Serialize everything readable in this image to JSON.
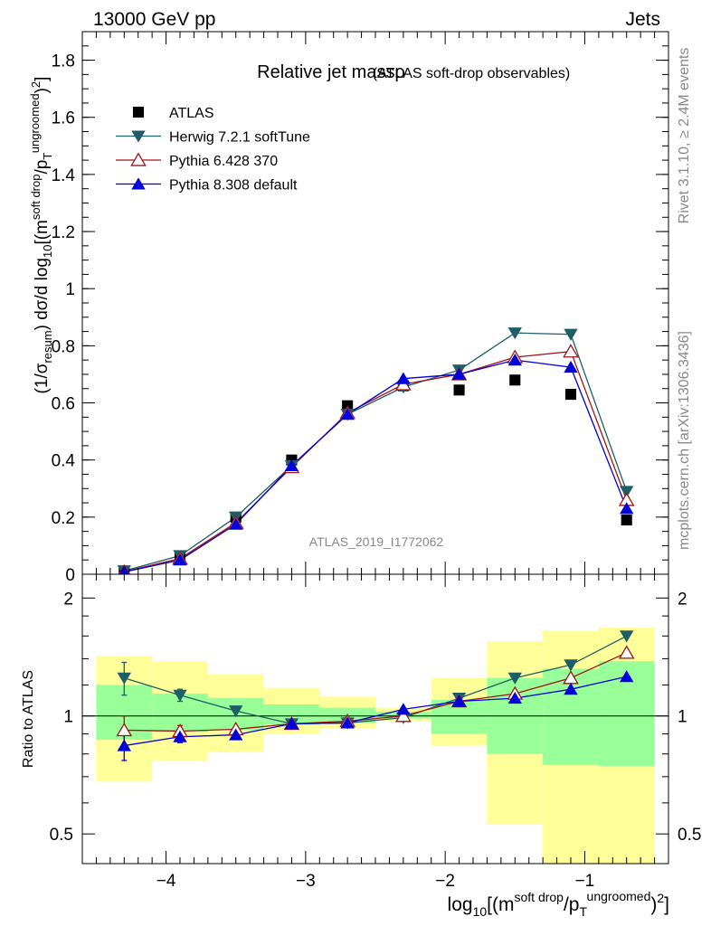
{
  "header": {
    "left": "13000 GeV pp",
    "right": "Jets"
  },
  "side": {
    "rivet": "Rivet 3.1.10, ≥ 2.4M events",
    "mcplots": "mcplots.cern.ch [arXiv:1306.3436]"
  },
  "chart_data": [
    {
      "type": "line",
      "title": "Relative jet massρ",
      "subtitle": "(ATLAS soft-drop observables)",
      "watermark": "ATLAS_2019_I1772062",
      "xlabel": "log10[(m^soft drop/pT^ungroomed)^2]",
      "ylabel": "(1/σresum) dσ/d log10[(m^soft drop/pT^ungroomed)^2]",
      "xlim": [
        -4.6,
        -0.4
      ],
      "ylim": [
        0,
        1.9
      ],
      "yticks": [
        "0",
        "0.2",
        "0.4",
        "0.6",
        "0.8",
        "1",
        "1.2",
        "1.4",
        "1.6",
        "1.8"
      ],
      "grid": false,
      "legend_position": "top-left",
      "x": [
        -4.3,
        -3.9,
        -3.5,
        -3.1,
        -2.7,
        -2.3,
        -1.9,
        -1.5,
        -1.1,
        -0.7
      ],
      "series": [
        {
          "name": "ATLAS",
          "marker": "square",
          "color": "#000000",
          "values": [
            0.01,
            0.06,
            0.2,
            0.4,
            0.59,
            0.66,
            0.645,
            0.68,
            0.63,
            0.19
          ]
        },
        {
          "name": "Herwig 7.2.1 softTune",
          "marker": "triangle-down",
          "color": "#1f5e66",
          "values": [
            0.012,
            0.065,
            0.2,
            0.38,
            0.56,
            0.655,
            0.715,
            0.845,
            0.84,
            0.29
          ]
        },
        {
          "name": "Pythia 6.428 370",
          "marker": "triangle-up-open",
          "color": "#a01418",
          "values": [
            0.009,
            0.055,
            0.18,
            0.375,
            0.565,
            0.665,
            0.7,
            0.76,
            0.78,
            0.26
          ]
        },
        {
          "name": "Pythia 8.308 default",
          "marker": "triangle-up",
          "color": "#0000dd",
          "values": [
            0.008,
            0.05,
            0.175,
            0.38,
            0.56,
            0.685,
            0.7,
            0.75,
            0.725,
            0.23
          ]
        }
      ]
    },
    {
      "type": "line",
      "ylabel": "Ratio to ATLAS",
      "xlabel": "log10[(m^soft drop/pT^ungroomed)^2]",
      "xlim": [
        -4.6,
        -0.4
      ],
      "ylim": [
        0.42,
        2.3
      ],
      "log_y": true,
      "xticks": [
        "−4",
        "−3",
        "−2",
        "−1"
      ],
      "yticks": [
        "0.5",
        "1",
        "2"
      ],
      "x": [
        -4.3,
        -3.9,
        -3.5,
        -3.1,
        -2.7,
        -2.3,
        -1.9,
        -1.5,
        -1.1,
        -0.7
      ],
      "bands": {
        "edges": [
          -4.5,
          -4.1,
          -3.7,
          -3.3,
          -2.9,
          -2.5,
          -2.1,
          -1.7,
          -1.3,
          -0.9,
          -0.5
        ],
        "inner_color": "#99ff99",
        "outer_color": "#ffff99",
        "inner_lo": [
          0.87,
          0.91,
          0.92,
          0.95,
          0.96,
          0.985,
          0.9,
          0.8,
          0.75,
          0.745
        ],
        "inner_hi": [
          1.2,
          1.14,
          1.11,
          1.07,
          1.05,
          1.025,
          1.1,
          1.25,
          1.32,
          1.38
        ],
        "outer_lo": [
          0.68,
          0.77,
          0.81,
          0.9,
          0.93,
          0.97,
          0.84,
          0.53,
          0.38,
          0.36
        ],
        "outer_hi": [
          1.42,
          1.38,
          1.28,
          1.18,
          1.12,
          1.05,
          1.25,
          1.55,
          1.65,
          1.68
        ]
      },
      "series": [
        {
          "name": "Herwig 7.2.1 softTune",
          "marker": "triangle-down",
          "color": "#1f5e66",
          "values": [
            1.25,
            1.13,
            1.03,
            0.955,
            0.96,
            0.99,
            1.11,
            1.25,
            1.35,
            1.6
          ],
          "errors": [
            0.12,
            0.04,
            0,
            0,
            0,
            0,
            0,
            0,
            0,
            0
          ]
        },
        {
          "name": "Pythia 6.428 370",
          "marker": "triangle-up-open",
          "color": "#a01418",
          "values": [
            0.92,
            0.915,
            0.925,
            0.955,
            0.97,
            1.0,
            1.09,
            1.14,
            1.25,
            1.45
          ],
          "errors": [
            0.08,
            0.03,
            0,
            0,
            0,
            0,
            0,
            0,
            0,
            0
          ]
        },
        {
          "name": "Pythia 8.308 default",
          "marker": "triangle-up",
          "color": "#0000dd",
          "values": [
            0.84,
            0.885,
            0.895,
            0.955,
            0.96,
            1.04,
            1.09,
            1.11,
            1.17,
            1.26
          ],
          "errors": [
            0.07,
            0.03,
            0,
            0,
            0,
            0,
            0,
            0,
            0,
            0
          ]
        }
      ]
    }
  ]
}
